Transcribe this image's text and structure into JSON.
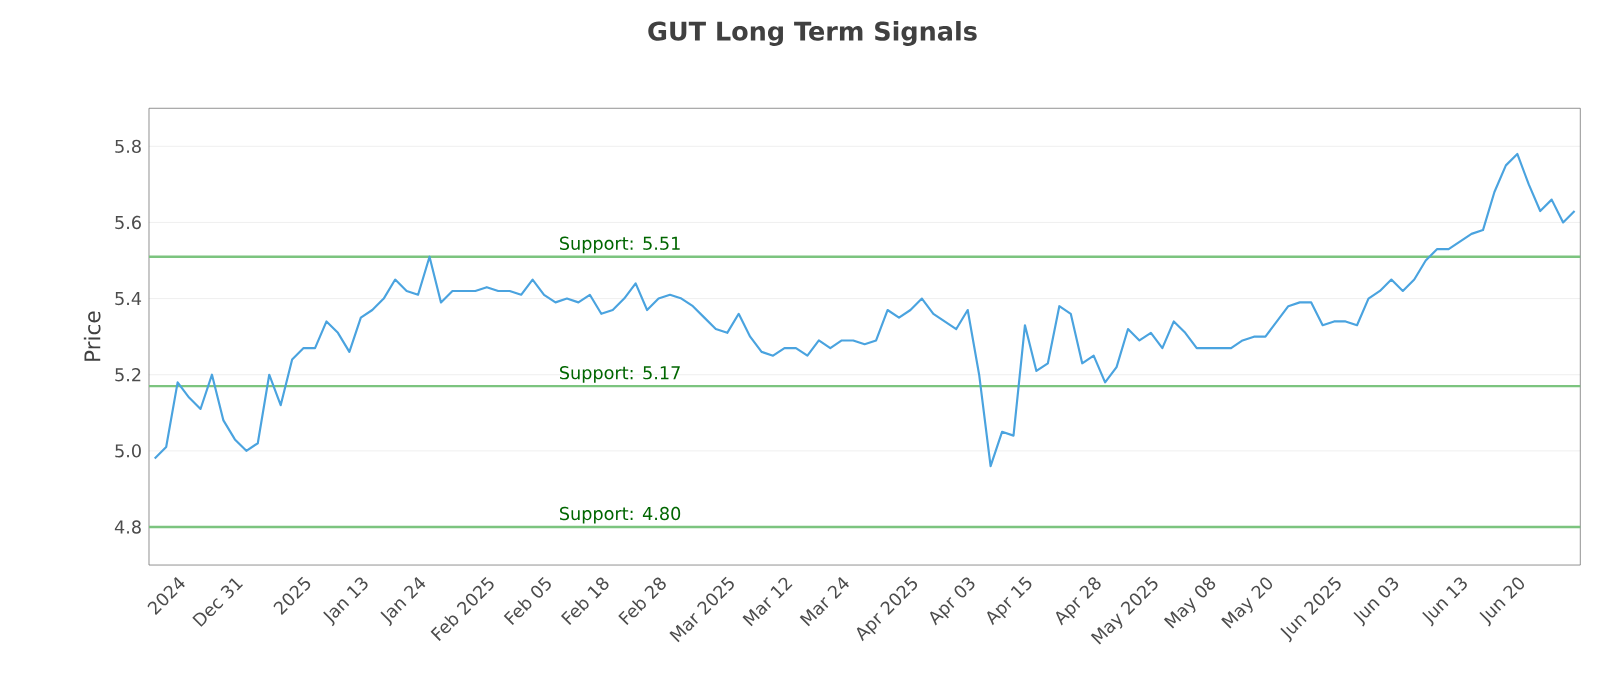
{
  "chart_data": {
    "type": "line",
    "title": "GUT Long Term Signals",
    "ylabel": "Price",
    "categories": [
      null,
      null,
      "2024",
      null,
      null,
      null,
      null,
      "Dec 31",
      null,
      null,
      null,
      null,
      null,
      "2025",
      null,
      null,
      null,
      null,
      "Jan 13",
      null,
      null,
      null,
      null,
      "Jan 24",
      null,
      null,
      null,
      null,
      null,
      "Feb 2025",
      null,
      null,
      null,
      null,
      "Feb 05",
      null,
      null,
      null,
      null,
      "Feb 18",
      null,
      null,
      null,
      null,
      "Feb 28",
      null,
      null,
      null,
      null,
      null,
      "Mar 2025",
      null,
      null,
      null,
      null,
      "Mar 12",
      null,
      null,
      null,
      null,
      "Mar 24",
      null,
      null,
      null,
      null,
      null,
      "Apr 2025",
      null,
      null,
      null,
      null,
      "Apr 03",
      null,
      null,
      null,
      null,
      "Apr 15",
      null,
      null,
      null,
      null,
      null,
      "Apr 28",
      null,
      null,
      null,
      null,
      "May 2025",
      null,
      null,
      null,
      null,
      "May 08",
      null,
      null,
      null,
      null,
      "May 20",
      null,
      null,
      null,
      null,
      null,
      "Jun 2025",
      null,
      null,
      null,
      null,
      "Jun 03",
      null,
      null,
      null,
      null,
      null,
      "Jun 13",
      null,
      null,
      null,
      null,
      "Jun 20",
      null,
      null,
      null,
      null,
      null
    ],
    "series": [
      {
        "color": "#4aa3df",
        "values": [
          4.98,
          5.01,
          5.18,
          5.14,
          5.11,
          5.2,
          5.08,
          5.03,
          5.0,
          5.02,
          5.2,
          5.12,
          5.24,
          5.27,
          5.27,
          5.34,
          5.31,
          5.26,
          5.35,
          5.37,
          5.4,
          5.45,
          5.42,
          5.41,
          5.51,
          5.39,
          5.42,
          5.42,
          5.42,
          5.43,
          5.42,
          5.42,
          5.41,
          5.45,
          5.41,
          5.39,
          5.4,
          5.39,
          5.41,
          5.36,
          5.37,
          5.4,
          5.44,
          5.37,
          5.4,
          5.41,
          5.4,
          5.38,
          5.35,
          5.32,
          5.31,
          5.36,
          5.3,
          5.26,
          5.25,
          5.27,
          5.27,
          5.25,
          5.29,
          5.27,
          5.29,
          5.29,
          5.28,
          5.29,
          5.37,
          5.35,
          5.37,
          5.4,
          5.36,
          5.34,
          5.32,
          5.37,
          5.2,
          4.96,
          5.05,
          5.04,
          5.33,
          5.21,
          5.23,
          5.38,
          5.36,
          5.23,
          5.25,
          5.18,
          5.22,
          5.32,
          5.29,
          5.31,
          5.27,
          5.34,
          5.31,
          5.27,
          5.27,
          5.27,
          5.27,
          5.29,
          5.3,
          5.3,
          5.34,
          5.38,
          5.39,
          5.39,
          5.33,
          5.34,
          5.34,
          5.33,
          5.4,
          5.42,
          5.45,
          5.42,
          5.45,
          5.5,
          5.53,
          5.53,
          5.55,
          5.57,
          5.58,
          5.68,
          5.75,
          5.78,
          5.7,
          5.63,
          5.66,
          5.6,
          5.63
        ]
      }
    ],
    "ylim": [
      4.7,
      5.9
    ],
    "yticks": [
      4.8,
      {
        "value": 5.0,
        "label": "5.0"
      },
      5.2,
      5.4,
      5.6,
      5.8
    ],
    "grid": "y",
    "marker": "none",
    "line_style": "solid",
    "ref_lines": [
      {
        "axis": "y",
        "value": 5.51,
        "label": "Support: 5.51",
        "color": "#7cc47f"
      },
      {
        "axis": "y",
        "value": 5.17,
        "label": "Support: 5.17",
        "color": "#7cc47f"
      },
      {
        "axis": "y",
        "value": 4.8,
        "label": "Support: 4.80",
        "color": "#7cc47f"
      }
    ]
  }
}
